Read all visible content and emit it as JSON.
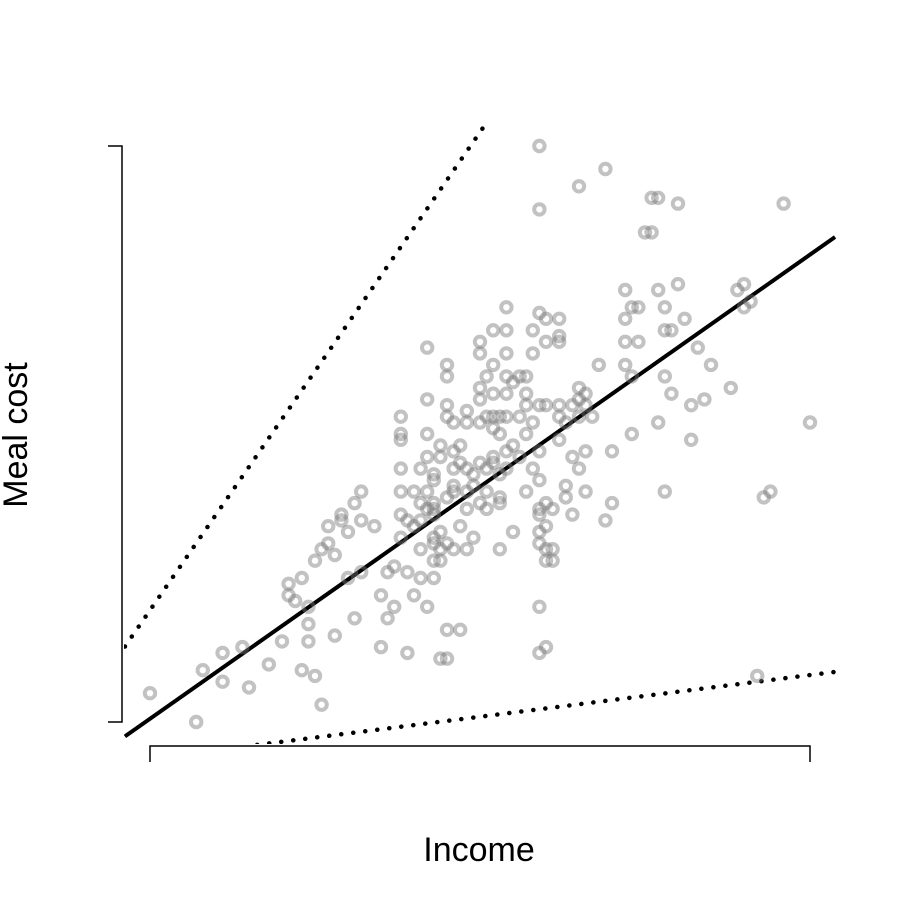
{
  "chart_data": {
    "type": "scatter",
    "xlabel": "Income",
    "ylabel": "Meal cost",
    "xlim": [
      0,
      100
    ],
    "ylim": [
      0,
      100
    ],
    "axis_ticks": "none",
    "grid": false,
    "point_style": "semi-transparent grey hollow circles",
    "points": [
      [
        0,
        5
      ],
      [
        7,
        0
      ],
      [
        8,
        9
      ],
      [
        11,
        7
      ],
      [
        11,
        12
      ],
      [
        14,
        13
      ],
      [
        15,
        6
      ],
      [
        18,
        10
      ],
      [
        20,
        14
      ],
      [
        21,
        22
      ],
      [
        22,
        21
      ],
      [
        21,
        24
      ],
      [
        23,
        25
      ],
      [
        24,
        17
      ],
      [
        24,
        20
      ],
      [
        23,
        9
      ],
      [
        24,
        14
      ],
      [
        25,
        8
      ],
      [
        26,
        3
      ],
      [
        25,
        28
      ],
      [
        26,
        30
      ],
      [
        27,
        31
      ],
      [
        27,
        34
      ],
      [
        28,
        29
      ],
      [
        28,
        15
      ],
      [
        29,
        36
      ],
      [
        29,
        35
      ],
      [
        30,
        33
      ],
      [
        30,
        25
      ],
      [
        31,
        38
      ],
      [
        31,
        18
      ],
      [
        32,
        26
      ],
      [
        32,
        35
      ],
      [
        32,
        40
      ],
      [
        34,
        34
      ],
      [
        35,
        22
      ],
      [
        35,
        13
      ],
      [
        36,
        18
      ],
      [
        36,
        26
      ],
      [
        37,
        20
      ],
      [
        37,
        27
      ],
      [
        38,
        32
      ],
      [
        38,
        40
      ],
      [
        38,
        36
      ],
      [
        38,
        44
      ],
      [
        38,
        50
      ],
      [
        38,
        53
      ],
      [
        38,
        49
      ],
      [
        39,
        26
      ],
      [
        39,
        12
      ],
      [
        39,
        35
      ],
      [
        40,
        22
      ],
      [
        40,
        34
      ],
      [
        40,
        40
      ],
      [
        41,
        44
      ],
      [
        41,
        38
      ],
      [
        41,
        25
      ],
      [
        41,
        30
      ],
      [
        41,
        35
      ],
      [
        42,
        40
      ],
      [
        42,
        37
      ],
      [
        42,
        46
      ],
      [
        42,
        50
      ],
      [
        42,
        56
      ],
      [
        42,
        65
      ],
      [
        42,
        20
      ],
      [
        43,
        31
      ],
      [
        43,
        28
      ],
      [
        43,
        25
      ],
      [
        43,
        37
      ],
      [
        43,
        42
      ],
      [
        43,
        38
      ],
      [
        43,
        32
      ],
      [
        43,
        43
      ],
      [
        43,
        36
      ],
      [
        44,
        30
      ],
      [
        44,
        48
      ],
      [
        44,
        33
      ],
      [
        44,
        46
      ],
      [
        44,
        11
      ],
      [
        44,
        28
      ],
      [
        45,
        31
      ],
      [
        45,
        39
      ],
      [
        45,
        55
      ],
      [
        45,
        53
      ],
      [
        45,
        60
      ],
      [
        45,
        62
      ],
      [
        45,
        16
      ],
      [
        45,
        11
      ],
      [
        46,
        30
      ],
      [
        46,
        40
      ],
      [
        46,
        41
      ],
      [
        46,
        47
      ],
      [
        46,
        52
      ],
      [
        46,
        44
      ],
      [
        47,
        34
      ],
      [
        47,
        45
      ],
      [
        47,
        48
      ],
      [
        47,
        16
      ],
      [
        48,
        30
      ],
      [
        48,
        37
      ],
      [
        48,
        40
      ],
      [
        48,
        44
      ],
      [
        48,
        52
      ],
      [
        48,
        54
      ],
      [
        49,
        32
      ],
      [
        49,
        43
      ],
      [
        49,
        41
      ],
      [
        50,
        38
      ],
      [
        50,
        45
      ],
      [
        50,
        52
      ],
      [
        50,
        56
      ],
      [
        50,
        58
      ],
      [
        50,
        64
      ],
      [
        50,
        66
      ],
      [
        51,
        40
      ],
      [
        51,
        37
      ],
      [
        51,
        44
      ],
      [
        51,
        53
      ],
      [
        51,
        60
      ],
      [
        52,
        45
      ],
      [
        52,
        46
      ],
      [
        52,
        51
      ],
      [
        52,
        53
      ],
      [
        52,
        57
      ],
      [
        52,
        62
      ],
      [
        52,
        68
      ],
      [
        53,
        39
      ],
      [
        53,
        30
      ],
      [
        53,
        38
      ],
      [
        53,
        43
      ],
      [
        53,
        50
      ],
      [
        53,
        53
      ],
      [
        54,
        44
      ],
      [
        54,
        47
      ],
      [
        54,
        53
      ],
      [
        54,
        57
      ],
      [
        54,
        60
      ],
      [
        54,
        64
      ],
      [
        54,
        68
      ],
      [
        54,
        72
      ],
      [
        55,
        33
      ],
      [
        55,
        48
      ],
      [
        55,
        59
      ],
      [
        56,
        46
      ],
      [
        56,
        53
      ],
      [
        56,
        60
      ],
      [
        57,
        40
      ],
      [
        57,
        50
      ],
      [
        57,
        55
      ],
      [
        57,
        57
      ],
      [
        57,
        60
      ],
      [
        58,
        44
      ],
      [
        58,
        52
      ],
      [
        58,
        64
      ],
      [
        58,
        68
      ],
      [
        59,
        55
      ],
      [
        59,
        47
      ],
      [
        59,
        42
      ],
      [
        59,
        37
      ],
      [
        59,
        33
      ],
      [
        59,
        20
      ],
      [
        59,
        31
      ],
      [
        59,
        36
      ],
      [
        60,
        28
      ],
      [
        60,
        30
      ],
      [
        60,
        34
      ],
      [
        60,
        38
      ],
      [
        59,
        12
      ],
      [
        60,
        13
      ],
      [
        59,
        71
      ],
      [
        60,
        70
      ],
      [
        60,
        66
      ],
      [
        60,
        55
      ],
      [
        61,
        37
      ],
      [
        61,
        28
      ],
      [
        61,
        30
      ],
      [
        62,
        55
      ],
      [
        62,
        66
      ],
      [
        62,
        70
      ],
      [
        62,
        53
      ],
      [
        62,
        49
      ],
      [
        62,
        67
      ],
      [
        63,
        39
      ],
      [
        63,
        41
      ],
      [
        63,
        52
      ],
      [
        64,
        46
      ],
      [
        64,
        55
      ],
      [
        64,
        36
      ],
      [
        65,
        44
      ],
      [
        65,
        53
      ],
      [
        65,
        56
      ],
      [
        65,
        58
      ],
      [
        66,
        40
      ],
      [
        66,
        47
      ],
      [
        66,
        55
      ],
      [
        66,
        57
      ],
      [
        67,
        53
      ],
      [
        68,
        62
      ],
      [
        69,
        35
      ],
      [
        70,
        38
      ],
      [
        70,
        47
      ],
      [
        72,
        70
      ],
      [
        72,
        66
      ],
      [
        72,
        62
      ],
      [
        72,
        75
      ],
      [
        73,
        60
      ],
      [
        73,
        50
      ],
      [
        73,
        72
      ],
      [
        74,
        66
      ],
      [
        74,
        72
      ],
      [
        75,
        85
      ],
      [
        76,
        85
      ],
      [
        76,
        91
      ],
      [
        77,
        91
      ],
      [
        77,
        75
      ],
      [
        77,
        52
      ],
      [
        78,
        68
      ],
      [
        78,
        72
      ],
      [
        78,
        60
      ],
      [
        78,
        40
      ],
      [
        79,
        68
      ],
      [
        79,
        57
      ],
      [
        80,
        90
      ],
      [
        80,
        76
      ],
      [
        81,
        70
      ],
      [
        82,
        55
      ],
      [
        82,
        49
      ],
      [
        83,
        65
      ],
      [
        84,
        56
      ],
      [
        85,
        62
      ],
      [
        88,
        58
      ],
      [
        89,
        75
      ],
      [
        90,
        76
      ],
      [
        90,
        72
      ],
      [
        91,
        73
      ],
      [
        92,
        8
      ],
      [
        93,
        39
      ],
      [
        94,
        40
      ],
      [
        96,
        90
      ],
      [
        100,
        52
      ],
      [
        59,
        89
      ],
      [
        59,
        100
      ],
      [
        65,
        93
      ],
      [
        69,
        96
      ]
    ],
    "fit_line": [
      [
        -3.8,
        -2.5
      ],
      [
        103.8,
        84.2
      ]
    ],
    "bound_lines": [
      [
        [
          -3.8,
          13.1
        ],
        [
          50.6,
          103.4
        ]
      ],
      [
        [
          12.6,
          -4.5
        ],
        [
          103.8,
          8.7
        ]
      ]
    ]
  }
}
